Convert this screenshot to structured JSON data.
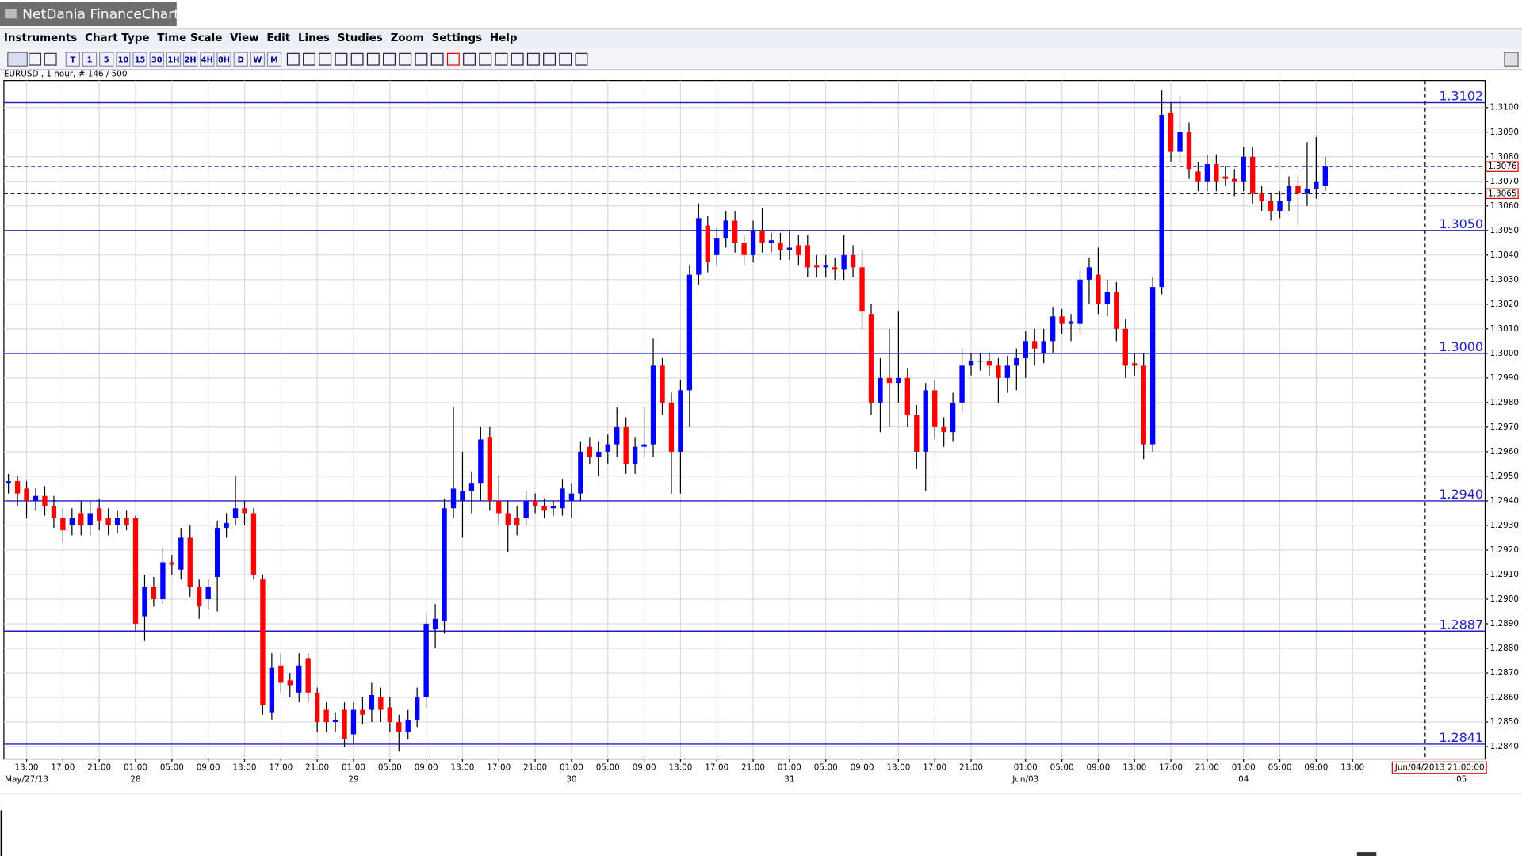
{
  "window": {
    "title": "NetDania FinanceChart"
  },
  "menu": [
    "Instruments",
    "Chart Type",
    "Time Scale",
    "View",
    "Edit",
    "Lines",
    "Studies",
    "Zoom",
    "Settings",
    "Help"
  ],
  "toolbar_buttons": [
    "T",
    "1",
    "5",
    "10",
    "15",
    "30",
    "1H",
    "2H",
    "4H",
    "8H",
    "D",
    "W",
    "M"
  ],
  "chart_data": {
    "type": "candlestick",
    "info": "EURUSD , 1 hour, # 146 / 500",
    "up_color": "#0000ff",
    "down_color": "#ff0000",
    "level_color": "#2020c0",
    "grid": true,
    "xlim": [
      -0.5,
      162.6
    ],
    "ylim": [
      1.2835,
      1.3111
    ],
    "yticks": [
      {
        "value": 1.284,
        "label": "1.2840"
      },
      {
        "value": 1.285,
        "label": "1.2850"
      },
      {
        "value": 1.286,
        "label": "1.2860"
      },
      {
        "value": 1.287,
        "label": "1.2870"
      },
      {
        "value": 1.288,
        "label": "1.2880"
      },
      {
        "value": 1.289,
        "label": "1.2890"
      },
      {
        "value": 1.29,
        "label": "1.2900"
      },
      {
        "value": 1.291,
        "label": "1.2910"
      },
      {
        "value": 1.292,
        "label": "1.2920"
      },
      {
        "value": 1.293,
        "label": "1.2930"
      },
      {
        "value": 1.294,
        "label": "1.2940"
      },
      {
        "value": 1.295,
        "label": "1.2950"
      },
      {
        "value": 1.296,
        "label": "1.2960"
      },
      {
        "value": 1.297,
        "label": "1.2970"
      },
      {
        "value": 1.298,
        "label": "1.2980"
      },
      {
        "value": 1.299,
        "label": "1.2990"
      },
      {
        "value": 1.3,
        "label": "1.3000"
      },
      {
        "value": 1.301,
        "label": "1.3010"
      },
      {
        "value": 1.302,
        "label": "1.3020"
      },
      {
        "value": 1.303,
        "label": "1.3030"
      },
      {
        "value": 1.304,
        "label": "1.3040"
      },
      {
        "value": 1.305,
        "label": "1.3050"
      },
      {
        "value": 1.306,
        "label": "1.3060"
      },
      {
        "value": 1.307,
        "label": "1.3070"
      },
      {
        "value": 1.308,
        "label": "1.3080"
      },
      {
        "value": 1.309,
        "label": "1.3090"
      },
      {
        "value": 1.31,
        "label": "1.3100"
      }
    ],
    "xticks": [
      {
        "value": 2,
        "label": "13:00"
      },
      {
        "value": 6,
        "label": "17:00"
      },
      {
        "value": 10,
        "label": "21:00"
      },
      {
        "value": 14,
        "label": "01:00"
      },
      {
        "value": 18,
        "label": "05:00"
      },
      {
        "value": 22,
        "label": "09:00"
      },
      {
        "value": 26,
        "label": "13:00"
      },
      {
        "value": 30,
        "label": "17:00"
      },
      {
        "value": 34,
        "label": "21:00"
      },
      {
        "value": 38,
        "label": "01:00"
      },
      {
        "value": 42,
        "label": "05:00"
      },
      {
        "value": 46,
        "label": "09:00"
      },
      {
        "value": 50,
        "label": "13:00"
      },
      {
        "value": 54,
        "label": "17:00"
      },
      {
        "value": 58,
        "label": "21:00"
      },
      {
        "value": 62,
        "label": "01:00"
      },
      {
        "value": 66,
        "label": "05:00"
      },
      {
        "value": 70,
        "label": "09:00"
      },
      {
        "value": 74,
        "label": "13:00"
      },
      {
        "value": 78,
        "label": "17:00"
      },
      {
        "value": 82,
        "label": "21:00"
      },
      {
        "value": 86,
        "label": "01:00"
      },
      {
        "value": 90,
        "label": "05:00"
      },
      {
        "value": 94,
        "label": "09:00"
      },
      {
        "value": 98,
        "label": "13:00"
      },
      {
        "value": 102,
        "label": "17:00"
      },
      {
        "value": 106,
        "label": "21:00"
      },
      {
        "value": 112,
        "label": "01:00"
      },
      {
        "value": 116,
        "label": "05:00"
      },
      {
        "value": 120,
        "label": "09:00"
      },
      {
        "value": 124,
        "label": "13:00"
      },
      {
        "value": 128,
        "label": "17:00"
      },
      {
        "value": 132,
        "label": "21:00"
      },
      {
        "value": 136,
        "label": "01:00"
      },
      {
        "value": 140,
        "label": "05:00"
      },
      {
        "value": 144,
        "label": "09:00"
      },
      {
        "value": 148,
        "label": "13:00"
      }
    ],
    "date_ticks": [
      {
        "value": 2,
        "label": "May/27/13"
      },
      {
        "value": 14,
        "label": "28"
      },
      {
        "value": 38,
        "label": "29"
      },
      {
        "value": 62,
        "label": "30"
      },
      {
        "value": 86,
        "label": "31"
      },
      {
        "value": 112,
        "label": "Jun/03"
      },
      {
        "value": 136,
        "label": "04"
      },
      {
        "value": 160,
        "label": "05"
      }
    ],
    "levels": [
      1.3102,
      {
        "value": 1.305,
        "label": "1.3050"
      },
      {
        "value": 1.3,
        "label": "1.3000"
      },
      {
        "value": 1.294,
        "label": "1.2940"
      },
      1.2887,
      1.2841
    ],
    "marker_lines": [
      {
        "value": 1.3076,
        "label": "1.3076",
        "color": "#2020c0"
      },
      {
        "value": 1.3065,
        "label": "1.3065",
        "color": "#000000"
      }
    ],
    "cursor": {
      "value": 156,
      "label": "Jun/04/2013 21:00:00"
    },
    "candles": [
      [
        1.2947,
        1.2951,
        1.2943,
        1.2948
      ],
      [
        1.2948,
        1.295,
        1.2938,
        1.2943
      ],
      [
        1.2945,
        1.2948,
        1.2933,
        1.294
      ],
      [
        1.294,
        1.2945,
        1.2936,
        1.2942
      ],
      [
        1.2942,
        1.2946,
        1.2934,
        1.2938
      ],
      [
        1.2938,
        1.2942,
        1.2929,
        1.2933
      ],
      [
        1.2933,
        1.2937,
        1.2923,
        1.2928
      ],
      [
        1.293,
        1.2937,
        1.2926,
        1.2933
      ],
      [
        1.2935,
        1.294,
        1.2926,
        1.293
      ],
      [
        1.293,
        1.294,
        1.2926,
        1.2935
      ],
      [
        1.2937,
        1.2941,
        1.2928,
        1.2932
      ],
      [
        1.2933,
        1.2937,
        1.2926,
        1.293
      ],
      [
        1.293,
        1.2936,
        1.2927,
        1.2933
      ],
      [
        1.2933,
        1.2936,
        1.2928,
        1.293
      ],
      [
        1.2933,
        1.2934,
        1.2887,
        1.289
      ],
      [
        1.2893,
        1.291,
        1.2883,
        1.2905
      ],
      [
        1.2905,
        1.2909,
        1.2897,
        1.29
      ],
      [
        1.29,
        1.2921,
        1.2898,
        1.2915
      ],
      [
        1.2915,
        1.2918,
        1.291,
        1.2914
      ],
      [
        1.2912,
        1.2929,
        1.2908,
        1.2925
      ],
      [
        1.2925,
        1.293,
        1.2901,
        1.2905
      ],
      [
        1.2905,
        1.2908,
        1.2892,
        1.2897
      ],
      [
        1.29,
        1.2908,
        1.2896,
        1.2905
      ],
      [
        1.2909,
        1.2932,
        1.2895,
        1.2929
      ],
      [
        1.2929,
        1.2935,
        1.2925,
        1.2931
      ],
      [
        1.2933,
        1.295,
        1.293,
        1.2937
      ],
      [
        1.2937,
        1.294,
        1.293,
        1.2935
      ],
      [
        1.2935,
        1.2937,
        1.2908,
        1.291
      ],
      [
        1.2908,
        1.291,
        1.2853,
        1.2857
      ],
      [
        1.2854,
        1.2878,
        1.2851,
        1.2872
      ],
      [
        1.2873,
        1.2878,
        1.2862,
        1.2866
      ],
      [
        1.2867,
        1.287,
        1.286,
        1.2865
      ],
      [
        1.2862,
        1.2878,
        1.2858,
        1.2873
      ],
      [
        1.2876,
        1.2878,
        1.2858,
        1.2862
      ],
      [
        1.2862,
        1.2864,
        1.2846,
        1.285
      ],
      [
        1.2855,
        1.2858,
        1.2846,
        1.285
      ],
      [
        1.285,
        1.2854,
        1.2846,
        1.2851
      ],
      [
        1.2855,
        1.2858,
        1.284,
        1.2843
      ],
      [
        1.2845,
        1.2858,
        1.2841,
        1.2855
      ],
      [
        1.2855,
        1.286,
        1.2849,
        1.2853
      ],
      [
        1.2855,
        1.2866,
        1.285,
        1.2861
      ],
      [
        1.286,
        1.2864,
        1.285,
        1.2855
      ],
      [
        1.2856,
        1.286,
        1.2846,
        1.285
      ],
      [
        1.285,
        1.2853,
        1.2838,
        1.2846
      ],
      [
        1.2846,
        1.2855,
        1.2843,
        1.2851
      ],
      [
        1.2851,
        1.2864,
        1.2848,
        1.286
      ],
      [
        1.286,
        1.2894,
        1.2856,
        1.289
      ],
      [
        1.2888,
        1.2898,
        1.288,
        1.2892
      ],
      [
        1.2891,
        1.2941,
        1.2886,
        1.2937
      ],
      [
        1.2937,
        1.2978,
        1.2933,
        1.2945
      ],
      [
        1.294,
        1.296,
        1.2925,
        1.2944
      ],
      [
        1.2944,
        1.2952,
        1.2935,
        1.2947
      ],
      [
        1.2947,
        1.297,
        1.294,
        1.2965
      ],
      [
        1.2966,
        1.297,
        1.2936,
        1.294
      ],
      [
        1.294,
        1.295,
        1.293,
        1.2935
      ],
      [
        1.2935,
        1.294,
        1.2919,
        1.293
      ],
      [
        1.2933,
        1.2938,
        1.2926,
        1.293
      ],
      [
        1.2933,
        1.2944,
        1.293,
        1.294
      ],
      [
        1.294,
        1.2943,
        1.2935,
        1.2938
      ],
      [
        1.2938,
        1.2941,
        1.2933,
        1.2936
      ],
      [
        1.2937,
        1.294,
        1.2934,
        1.2938
      ],
      [
        1.2937,
        1.2949,
        1.2934,
        1.2945
      ],
      [
        1.294,
        1.2947,
        1.2933,
        1.2943
      ],
      [
        1.2943,
        1.2964,
        1.294,
        1.296
      ],
      [
        1.2962,
        1.2966,
        1.2955,
        1.2958
      ],
      [
        1.2958,
        1.2964,
        1.295,
        1.296
      ],
      [
        1.296,
        1.2967,
        1.2955,
        1.2963
      ],
      [
        1.2963,
        1.2978,
        1.2958,
        1.297
      ],
      [
        1.297,
        1.2974,
        1.2951,
        1.2955
      ],
      [
        1.2955,
        1.2966,
        1.2951,
        1.2962
      ],
      [
        1.2962,
        1.2978,
        1.2958,
        1.2963
      ],
      [
        1.2963,
        1.3006,
        1.2958,
        1.2995
      ],
      [
        1.2995,
        1.2998,
        1.2975,
        1.298
      ],
      [
        1.298,
        1.2984,
        1.2943,
        1.296
      ],
      [
        1.296,
        1.2989,
        1.2943,
        1.2985
      ],
      [
        1.2985,
        1.3036,
        1.297,
        1.3032
      ],
      [
        1.3032,
        1.3061,
        1.3028,
        1.3055
      ],
      [
        1.3052,
        1.3056,
        1.3033,
        1.3037
      ],
      [
        1.304,
        1.3051,
        1.3036,
        1.3047
      ],
      [
        1.3047,
        1.3058,
        1.3043,
        1.3054
      ],
      [
        1.3054,
        1.3058,
        1.3041,
        1.3045
      ],
      [
        1.3045,
        1.3048,
        1.3036,
        1.304
      ],
      [
        1.304,
        1.3054,
        1.3037,
        1.305
      ],
      [
        1.305,
        1.3059,
        1.3041,
        1.3045
      ],
      [
        1.3045,
        1.3049,
        1.3041,
        1.3046
      ],
      [
        1.3045,
        1.3049,
        1.3038,
        1.3042
      ],
      [
        1.3042,
        1.305,
        1.3038,
        1.3043
      ],
      [
        1.3044,
        1.3048,
        1.3036,
        1.304
      ],
      [
        1.3044,
        1.3048,
        1.3031,
        1.3035
      ],
      [
        1.3036,
        1.304,
        1.3031,
        1.3035
      ],
      [
        1.3035,
        1.304,
        1.3031,
        1.3036
      ],
      [
        1.3035,
        1.3039,
        1.303,
        1.3034
      ],
      [
        1.3034,
        1.3048,
        1.303,
        1.304
      ],
      [
        1.304,
        1.3044,
        1.3031,
        1.3035
      ],
      [
        1.3035,
        1.3042,
        1.301,
        1.3017
      ],
      [
        1.3016,
        1.302,
        1.2975,
        1.298
      ],
      [
        1.298,
        1.2998,
        1.2968,
        1.299
      ],
      [
        1.299,
        1.301,
        1.297,
        1.2988
      ],
      [
        1.2988,
        1.3017,
        1.298,
        1.299
      ],
      [
        1.299,
        1.2994,
        1.297,
        1.2975
      ],
      [
        1.2975,
        1.2979,
        1.2953,
        1.296
      ],
      [
        1.296,
        1.2988,
        1.2944,
        1.2985
      ],
      [
        1.2985,
        1.2989,
        1.2965,
        1.297
      ],
      [
        1.297,
        1.2974,
        1.2962,
        1.2968
      ],
      [
        1.2968,
        1.2984,
        1.2964,
        1.298
      ],
      [
        1.298,
        1.3002,
        1.2976,
        1.2995
      ],
      [
        1.2995,
        1.3,
        1.2991,
        1.2997
      ],
      [
        1.2997,
        1.3,
        1.2993,
        1.2997
      ],
      [
        1.2997,
        1.3,
        1.2991,
        1.2995
      ],
      [
        1.2995,
        1.2998,
        1.298,
        1.299
      ],
      [
        1.299,
        1.2999,
        1.2984,
        1.2995
      ],
      [
        1.2995,
        1.3002,
        1.2985,
        1.2998
      ],
      [
        1.2998,
        1.3009,
        1.299,
        1.3005
      ],
      [
        1.3005,
        1.301,
        1.2995,
        1.3002
      ],
      [
        1.3,
        1.301,
        1.2996,
        1.3005
      ],
      [
        1.3005,
        1.3019,
        1.3,
        1.3015
      ],
      [
        1.3015,
        1.3018,
        1.3008,
        1.3012
      ],
      [
        1.3012,
        1.3016,
        1.3005,
        1.3013
      ],
      [
        1.3012,
        1.3034,
        1.3008,
        1.303
      ],
      [
        1.303,
        1.3039,
        1.302,
        1.3035
      ],
      [
        1.3032,
        1.3043,
        1.3016,
        1.302
      ],
      [
        1.302,
        1.303,
        1.3015,
        1.3025
      ],
      [
        1.3025,
        1.3029,
        1.3005,
        1.301
      ],
      [
        1.301,
        1.3014,
        1.299,
        1.2995
      ],
      [
        1.2996,
        1.3,
        1.2991,
        1.2995
      ],
      [
        1.2995,
        1.3,
        1.2957,
        1.2963
      ],
      [
        1.2963,
        1.3031,
        1.296,
        1.3027
      ],
      [
        1.3027,
        1.3107,
        1.3024,
        1.3097
      ],
      [
        1.3098,
        1.3102,
        1.3078,
        1.3082
      ],
      [
        1.3082,
        1.3105,
        1.3078,
        1.309
      ],
      [
        1.309,
        1.3094,
        1.3071,
        1.3075
      ],
      [
        1.3074,
        1.3078,
        1.3066,
        1.307
      ],
      [
        1.307,
        1.3081,
        1.3066,
        1.3077
      ],
      [
        1.3077,
        1.3081,
        1.3066,
        1.307
      ],
      [
        1.3072,
        1.3076,
        1.3068,
        1.3071
      ],
      [
        1.3071,
        1.3075,
        1.3064,
        1.307
      ],
      [
        1.307,
        1.3084,
        1.3066,
        1.308
      ],
      [
        1.308,
        1.3084,
        1.3061,
        1.3065
      ],
      [
        1.3065,
        1.3068,
        1.3058,
        1.3062
      ],
      [
        1.3062,
        1.3065,
        1.3054,
        1.3058
      ],
      [
        1.3058,
        1.3066,
        1.3055,
        1.3062
      ],
      [
        1.3062,
        1.3072,
        1.3058,
        1.3068
      ],
      [
        1.3068,
        1.3072,
        1.3052,
        1.3065
      ],
      [
        1.3065,
        1.3086,
        1.306,
        1.3067
      ],
      [
        1.3067,
        1.3088,
        1.3063,
        1.307
      ],
      [
        1.3068,
        1.308,
        1.3066,
        1.3076
      ]
    ]
  }
}
